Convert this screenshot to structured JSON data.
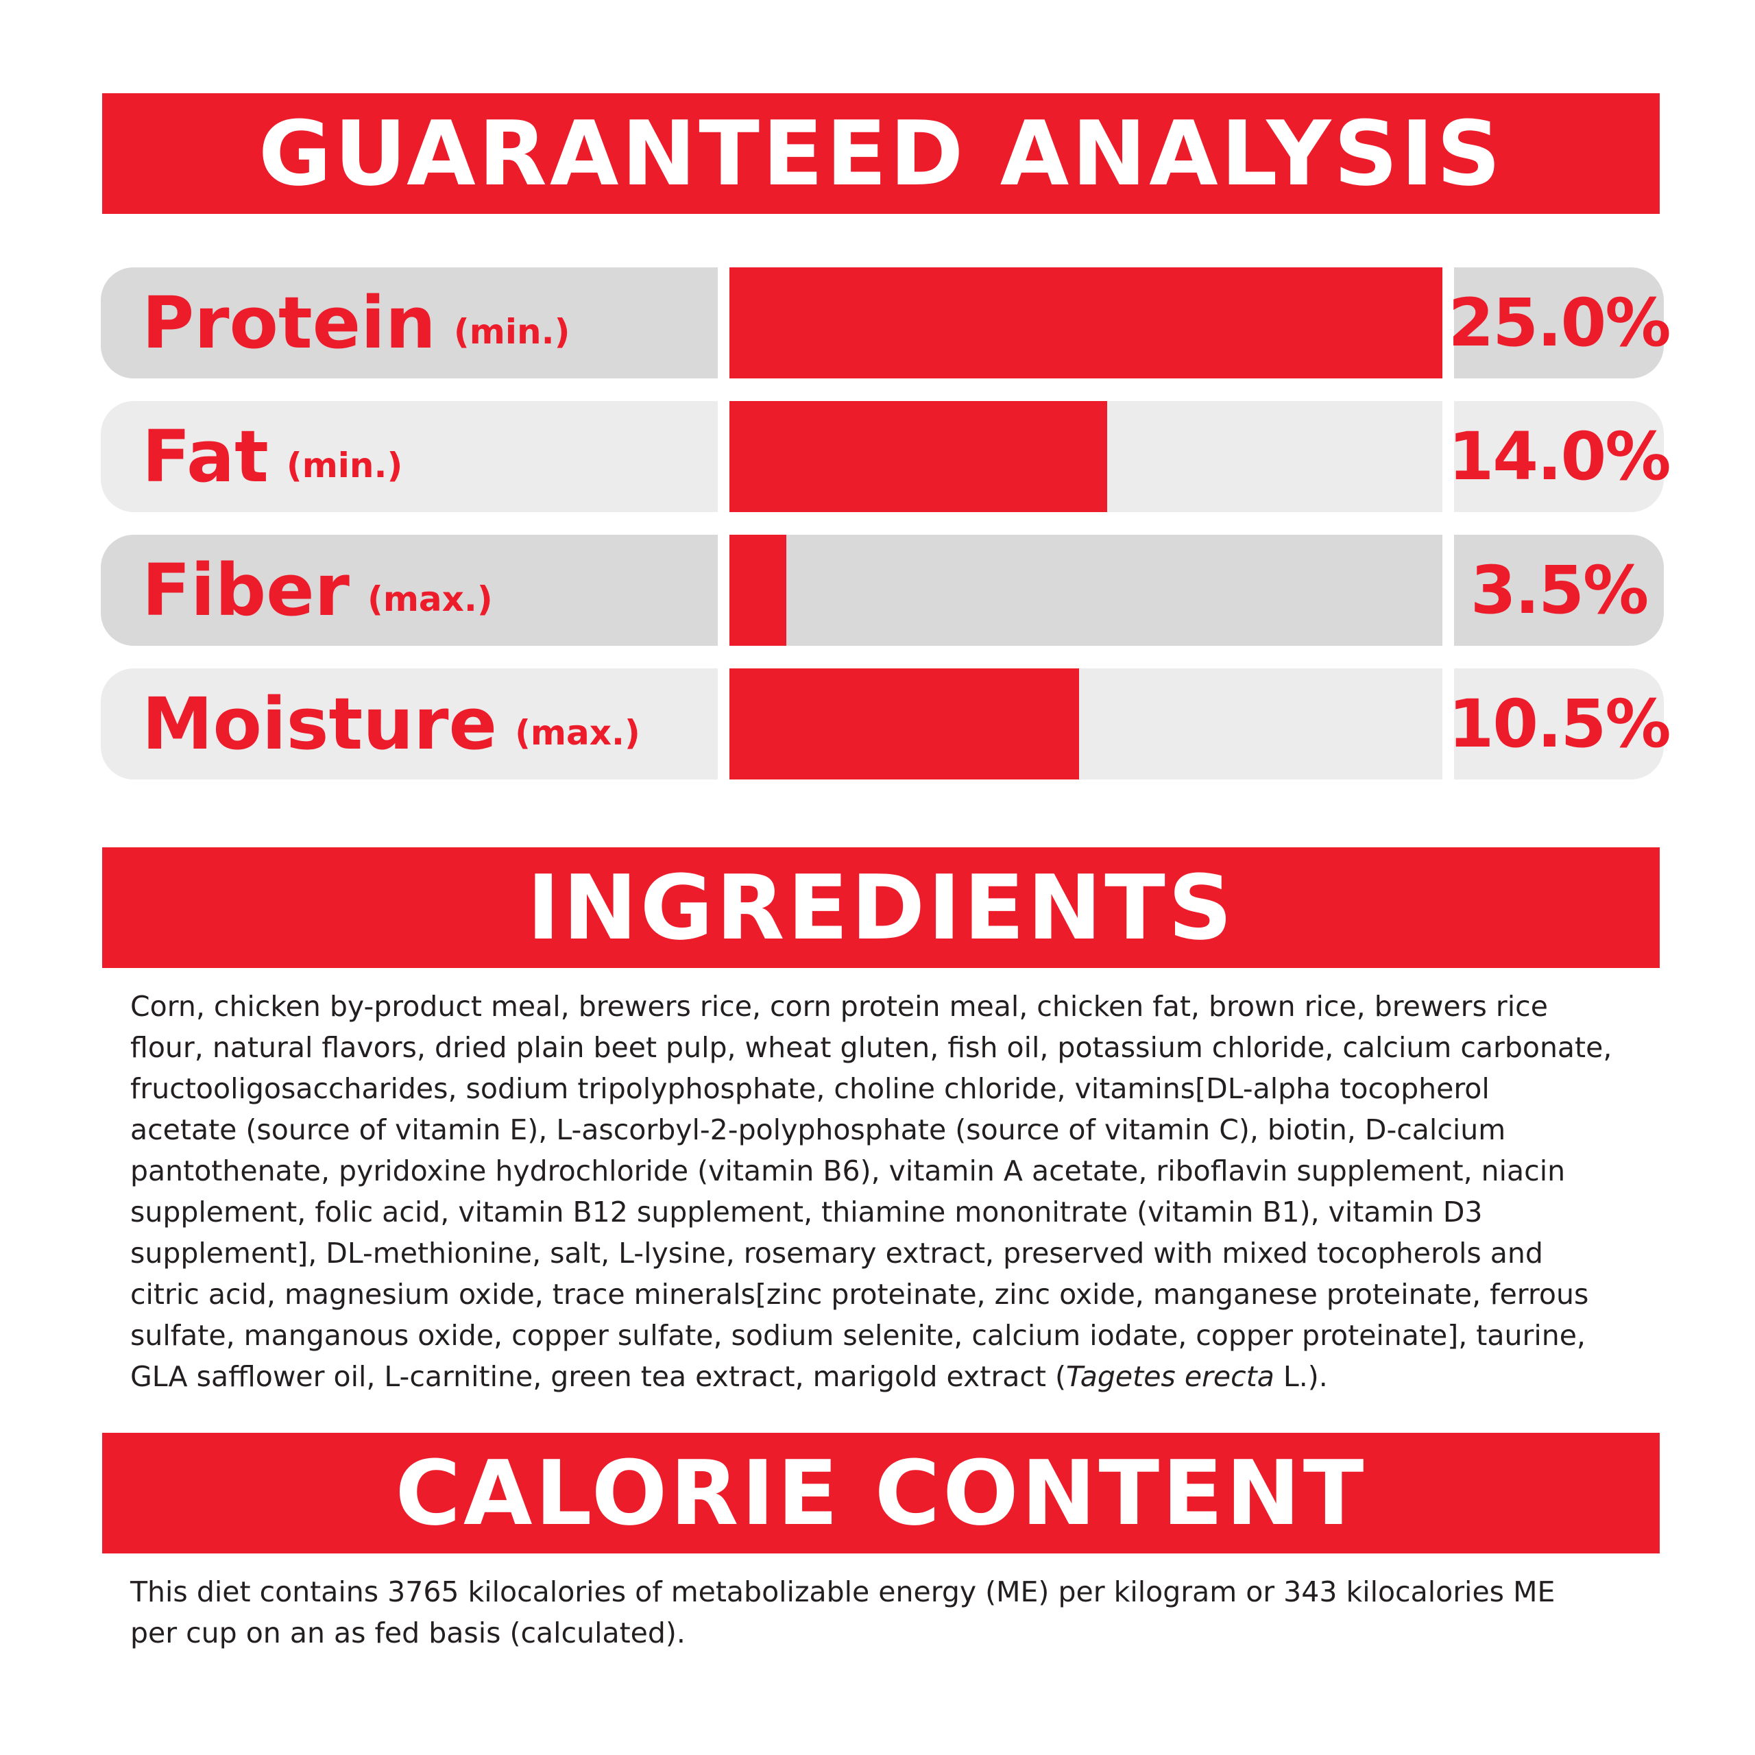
{
  "analysis": {
    "title": "GUARANTEED ANALYSIS",
    "rows": [
      {
        "name": "Protein",
        "qualifier": "(min.)",
        "value": "25.0%",
        "fill": 1.0
      },
      {
        "name": "Fat",
        "qualifier": "(min.)",
        "value": "14.0%",
        "fill": 0.53
      },
      {
        "name": "Fiber",
        "qualifier": "(max.)",
        "value": "3.5%",
        "fill": 0.08
      },
      {
        "name": "Moisture",
        "qualifier": "(max.)",
        "value": "10.5%",
        "fill": 0.49
      }
    ],
    "colors": {
      "accent": "#ed1c2b",
      "row_dark": "#d9d9d9",
      "row_light": "#ececec"
    }
  },
  "ingredients": {
    "title": "INGREDIENTS",
    "lines": [
      "Corn, chicken by-product meal, brewers rice, corn protein meal, chicken fat, brown rice, brewers rice",
      "flour, natural flavors, dried plain beet pulp, wheat gluten, fish oil, potassium chloride, calcium carbonate,",
      "fructooligosaccharides, sodium tripolyphosphate, choline chloride, vitamins[DL-alpha tocopherol",
      "acetate (source of vitamin E), L-ascorbyl-2-polyphosphate (source of vitamin C), biotin, D-calcium",
      "pantothenate, pyridoxine hydrochloride (vitamin B6), vitamin A acetate, riboflavin supplement, niacin",
      "supplement, folic acid, vitamin B12 supplement, thiamine mononitrate (vitamin B1), vitamin D3",
      "supplement], DL-methionine, salt, L-lysine, rosemary extract, preserved with mixed tocopherols and",
      "citric acid, magnesium oxide, trace minerals[zinc proteinate, zinc oxide, manganese proteinate, ferrous",
      "sulfate, manganous oxide, copper sulfate, sodium selenite, calcium iodate, copper proteinate], taurine,"
    ],
    "last_line_prefix": "GLA safflower oil, L-carnitine, green tea extract, marigold extract (",
    "last_line_italic": "Tagetes erecta",
    "last_line_suffix": " L.)."
  },
  "calorie": {
    "title": "CALORIE CONTENT",
    "lines": [
      "This diet contains 3765 kilocalories of metabolizable energy (ME) per kilogram or 343 kilocalories ME",
      "per cup on an as fed basis (calculated)."
    ]
  }
}
